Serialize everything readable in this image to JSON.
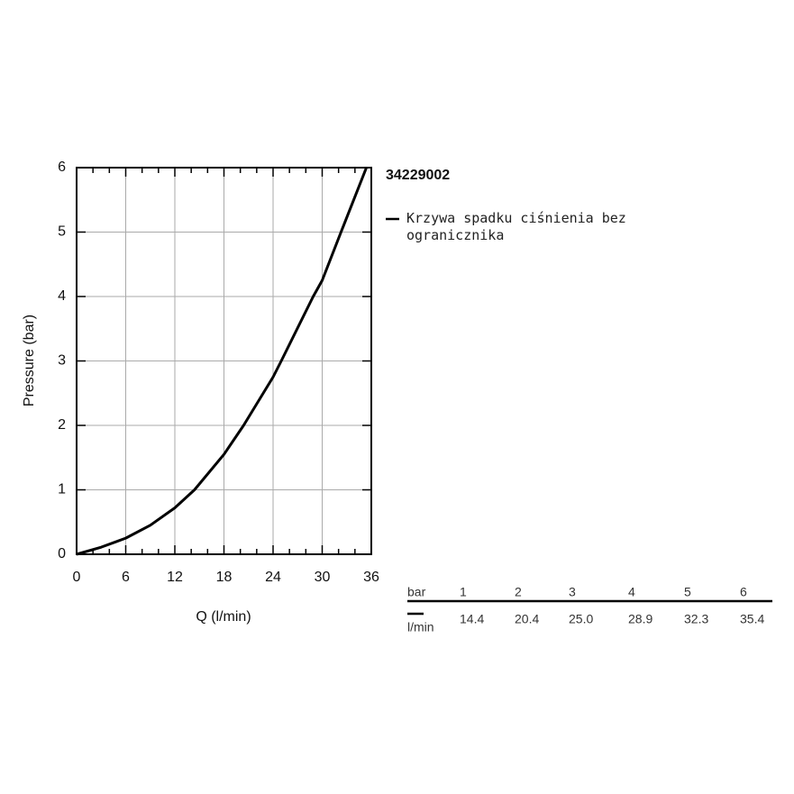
{
  "chart_data": {
    "type": "line",
    "title": "34229002",
    "x_label": "Q (l/min)",
    "y_label": "Pressure (bar)",
    "x": [
      0,
      3,
      6,
      9,
      12,
      14.4,
      18,
      20.4,
      24,
      25,
      28.9,
      30,
      32.3,
      35.4
    ],
    "series": [
      {
        "name": "Krzywa spadku ciśnienia bez ogranicznika",
        "color": "#000000",
        "values": [
          0,
          0.11,
          0.25,
          0.45,
          0.72,
          1,
          1.55,
          2,
          2.75,
          3,
          4,
          4.25,
          5,
          6
        ]
      }
    ],
    "xlim": [
      0,
      36
    ],
    "xticks": [
      0,
      6,
      12,
      18,
      24,
      30,
      36
    ],
    "xminor_ticks": [
      2,
      4,
      8,
      10,
      14,
      16,
      20,
      22,
      26,
      28,
      32,
      34
    ],
    "ylim": [
      0,
      6
    ],
    "yticks": [
      0,
      1,
      2,
      3,
      4,
      5,
      6
    ],
    "grid": true,
    "legend": "right"
  },
  "table": {
    "header": [
      "bar",
      "1",
      "2",
      "3",
      "4",
      "5",
      "6"
    ],
    "row_label": "l/min",
    "row": [
      "14.4",
      "20.4",
      "25.0",
      "28.9",
      "32.3",
      "35.4"
    ]
  }
}
